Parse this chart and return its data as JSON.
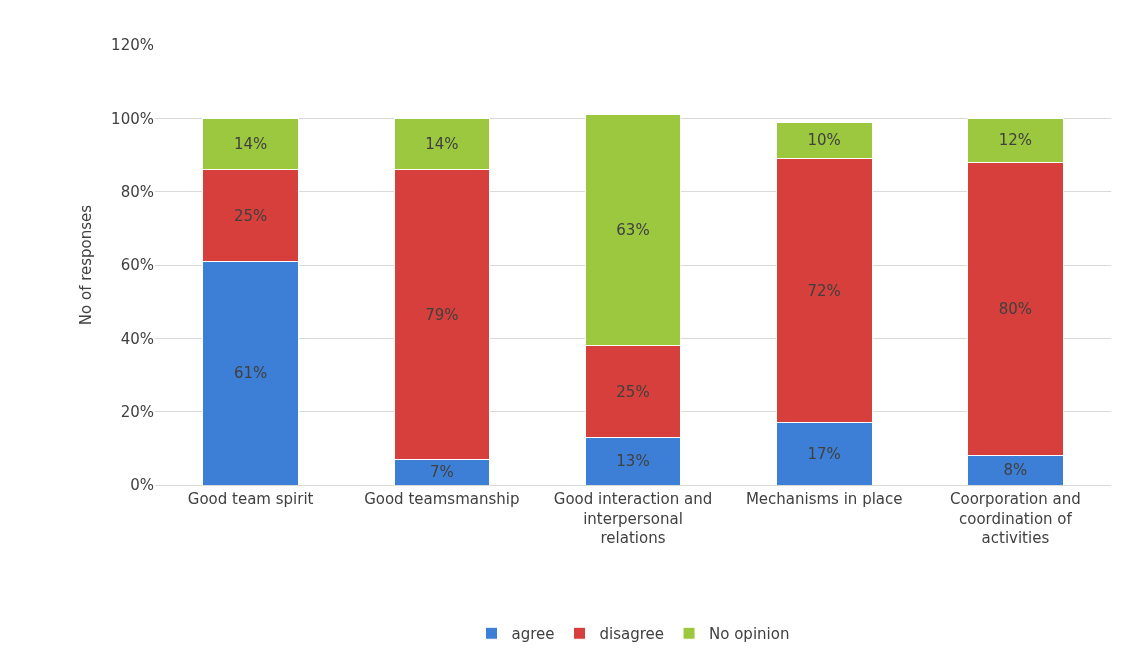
{
  "chart_data": {
    "type": "bar",
    "stacked": true,
    "ylabel": "No of responses",
    "categories": [
      "Good team spirit",
      "Good teamsmanship",
      "Good interaction and interpersonal relations",
      "Mechanisms in place",
      "Coorporation and coordination of activities"
    ],
    "series": [
      {
        "name": "agree",
        "color": "#3d7fd6",
        "values": [
          61,
          7,
          13,
          17,
          8
        ],
        "value_labels": [
          "61%",
          "7%",
          "13%",
          "17%",
          "8%"
        ]
      },
      {
        "name": "disagree",
        "color": "#d63f3b",
        "values": [
          25,
          79,
          25,
          72,
          80
        ],
        "value_labels": [
          "25%",
          "79%",
          "25%",
          "72%",
          "80%"
        ]
      },
      {
        "name": "No opinion",
        "color": "#9cc83f",
        "values": [
          14,
          14,
          63,
          10,
          12
        ],
        "value_labels": [
          "14%",
          "14%",
          "63%",
          "10%",
          "12%"
        ]
      }
    ],
    "ylim": [
      0,
      120
    ],
    "yticks": [
      {
        "value": 0,
        "label": "0%"
      },
      {
        "value": 20,
        "label": "20%"
      },
      {
        "value": 40,
        "label": "40%"
      },
      {
        "value": 60,
        "label": "60%"
      },
      {
        "value": 80,
        "label": "80%"
      },
      {
        "value": 100,
        "label": "100%"
      },
      {
        "value": 120,
        "label": "120%"
      }
    ],
    "grid": "y",
    "legend": "bottom"
  }
}
